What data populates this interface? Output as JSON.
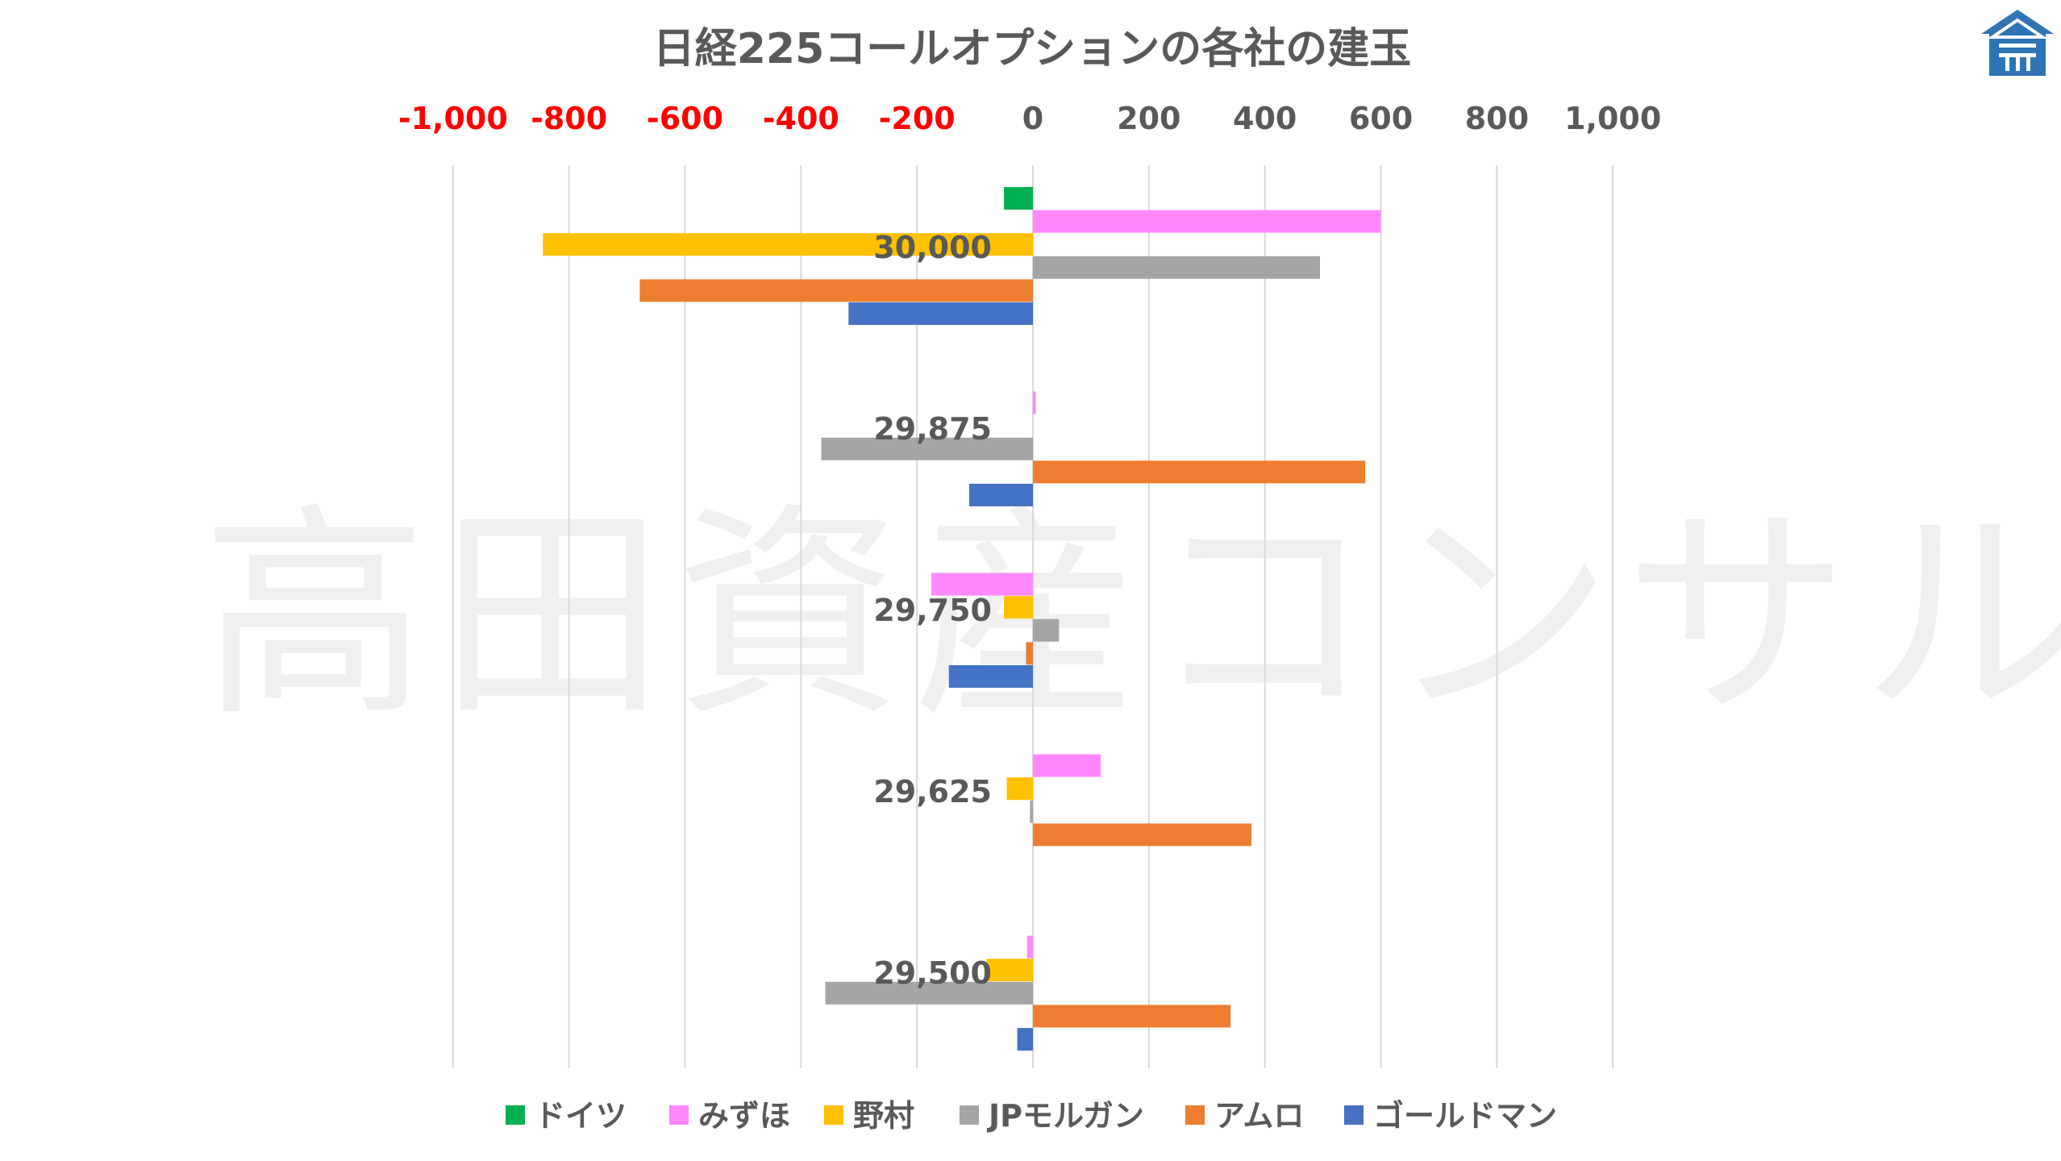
{
  "chart_data": {
    "type": "bar",
    "orientation": "horizontal",
    "title": "日経225コールオプションの各社の建玉",
    "watermark": "高田資産コンサル",
    "xlim": [
      -1000,
      1000
    ],
    "x_ticks": [
      -1000,
      -800,
      -600,
      -400,
      -200,
      0,
      200,
      400,
      600,
      800,
      1000
    ],
    "x_tick_labels": [
      "-1,000",
      "-800",
      "-600",
      "-400",
      "-200",
      "0",
      "200",
      "400",
      "600",
      "800",
      "1,000"
    ],
    "grid": true,
    "legend_position": "bottom",
    "categories": [
      "30,000",
      "29,875",
      "29,750",
      "29,625",
      "29,500"
    ],
    "series": [
      {
        "name": "ドイツ",
        "color": "#00b050",
        "values": [
          -50,
          0,
          0,
          0,
          0
        ]
      },
      {
        "name": "みずほ",
        "color": "#ff88ff",
        "values": [
          600,
          5,
          -175,
          117,
          -10
        ]
      },
      {
        "name": "野村",
        "color": "#ffc000",
        "values": [
          -845,
          0,
          -50,
          -45,
          -80
        ]
      },
      {
        "name": "JPモルガン",
        "color": "#a5a5a5",
        "values": [
          495,
          -365,
          45,
          -5,
          -358
        ]
      },
      {
        "name": "アムロ",
        "color": "#ed7d31",
        "values": [
          -678,
          573,
          -12,
          377,
          341
        ]
      },
      {
        "name": "ゴールドマン",
        "color": "#4472c4",
        "values": [
          -318,
          -110,
          -145,
          0,
          -27
        ]
      }
    ],
    "colors": {
      "negative_tick": "#ff0000",
      "positive_tick": "#595959",
      "title": "#595959",
      "category_label": "#595959",
      "grid": "#d9d9d9",
      "watermark": "#f0f0f0",
      "logo": "#2e75b6"
    }
  },
  "logo": {
    "icon": "company-roof-logo"
  }
}
